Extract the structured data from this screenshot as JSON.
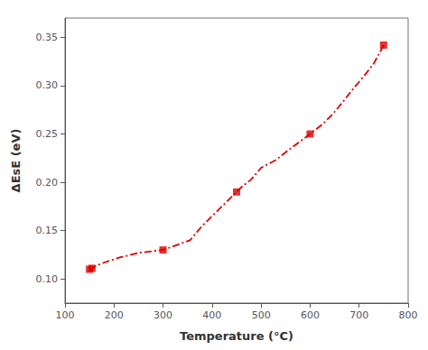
{
  "chart_data": {
    "type": "line",
    "x_label": "Temperature (°C)",
    "y_label": "ΔEsE (eV)",
    "series": [
      {
        "type": "line",
        "color": "#DD0000",
        "line_style": "dashdot",
        "x": [
          150,
          155,
          165,
          180,
          210,
          250,
          300,
          355,
          380,
          420,
          450,
          460,
          480,
          500,
          530,
          560,
          600,
          625,
          645,
          665,
          685,
          710,
          730,
          750
        ],
        "values": [
          0.11,
          0.111,
          0.114,
          0.117,
          0.122,
          0.127,
          0.13,
          0.14,
          0.155,
          0.175,
          0.19,
          0.195,
          0.203,
          0.215,
          0.223,
          0.235,
          0.25,
          0.26,
          0.27,
          0.282,
          0.295,
          0.31,
          0.323,
          0.342
        ]
      },
      {
        "type": "scatter",
        "color": "#DD0000",
        "marker": "square",
        "x": [
          150,
          155,
          300,
          450,
          600,
          750
        ],
        "values": [
          0.11,
          0.111,
          0.13,
          0.19,
          0.25,
          0.342
        ]
      }
    ],
    "xlim": [
      100,
      800
    ],
    "ylim": [
      0.075,
      0.37
    ],
    "xticks": [
      100,
      200,
      300,
      400,
      500,
      600,
      700,
      800
    ],
    "yticks": [
      {
        "value": 0.1,
        "label": "0.10"
      },
      0.15,
      {
        "value": 0.2,
        "label": "0.20"
      },
      0.25,
      {
        "value": 0.3,
        "label": "0.30"
      },
      0.35
    ],
    "grid": false
  }
}
